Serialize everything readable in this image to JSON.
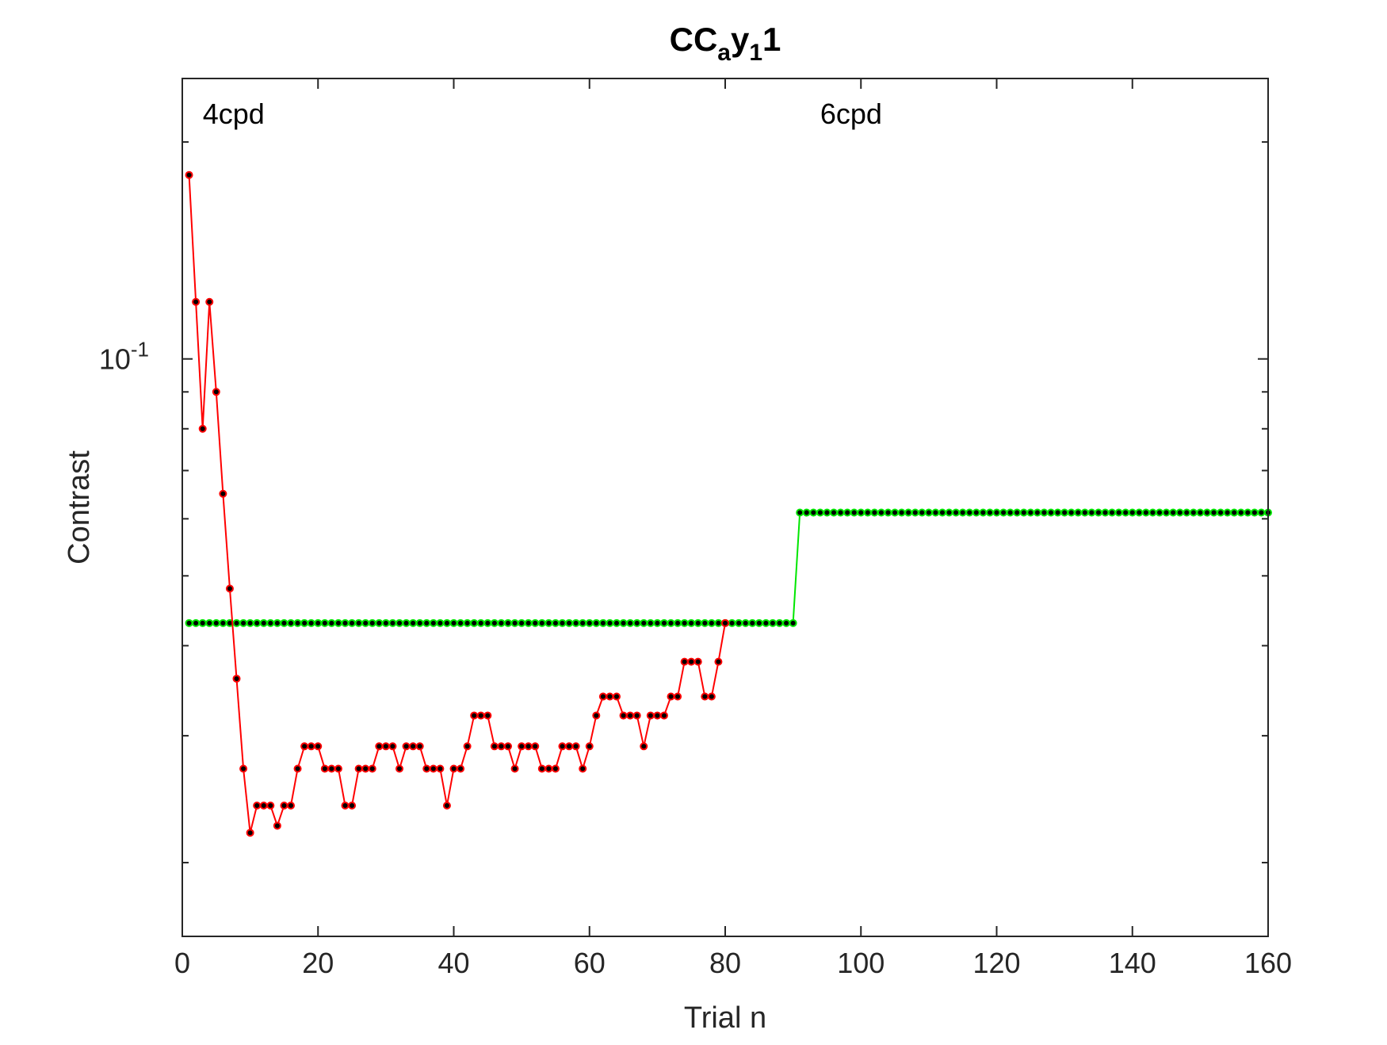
{
  "chart_data": {
    "type": "line",
    "title": {
      "base1": "CC",
      "sub1": "a",
      "base2": "y",
      "sub2": "1",
      "base3": "1"
    },
    "xlabel": "Trial n",
    "ylabel": "Contrast",
    "xlim": [
      0,
      160
    ],
    "ylim": [
      0.0158,
      0.245
    ],
    "yscale": "log",
    "grid": false,
    "x_ticks": [
      0,
      20,
      40,
      60,
      80,
      100,
      120,
      140,
      160
    ],
    "y_tick_label": {
      "base": "10",
      "exp": "-1",
      "value": 0.1
    },
    "y_minor_ticks": [
      0.02,
      0.03,
      0.04,
      0.05,
      0.06,
      0.07,
      0.08,
      0.09,
      0.2
    ],
    "annotations": [
      {
        "text": "4cpd",
        "x": 3,
        "y": 0.212
      },
      {
        "text": "6cpd",
        "x": 94,
        "y": 0.212
      }
    ],
    "series": [
      {
        "color": "#ff0000",
        "marker_color": "#000000",
        "x": [
          1,
          2,
          3,
          4,
          5,
          6,
          7,
          8,
          9,
          10,
          11,
          12,
          13,
          14,
          15,
          16,
          17,
          18,
          19,
          20,
          21,
          22,
          23,
          24,
          25,
          26,
          27,
          28,
          29,
          30,
          31,
          32,
          33,
          34,
          35,
          36,
          37,
          38,
          39,
          40,
          41,
          42,
          43,
          44,
          45,
          46,
          47,
          48,
          49,
          50,
          51,
          52,
          53,
          54,
          55,
          56,
          57,
          58,
          59,
          60,
          61,
          62,
          63,
          64,
          65,
          66,
          67,
          68,
          69,
          70,
          71,
          72,
          73,
          74,
          75,
          76,
          77,
          78,
          79,
          80
        ],
        "values": [
          0.18,
          0.12,
          0.08,
          0.12,
          0.09,
          0.065,
          0.048,
          0.036,
          0.027,
          0.022,
          0.024,
          0.024,
          0.024,
          0.0225,
          0.024,
          0.024,
          0.027,
          0.029,
          0.029,
          0.029,
          0.027,
          0.027,
          0.027,
          0.024,
          0.024,
          0.027,
          0.027,
          0.027,
          0.029,
          0.029,
          0.029,
          0.027,
          0.029,
          0.029,
          0.029,
          0.027,
          0.027,
          0.027,
          0.024,
          0.027,
          0.027,
          0.029,
          0.032,
          0.032,
          0.032,
          0.029,
          0.029,
          0.029,
          0.027,
          0.029,
          0.029,
          0.029,
          0.027,
          0.027,
          0.027,
          0.029,
          0.029,
          0.029,
          0.027,
          0.029,
          0.032,
          0.034,
          0.034,
          0.034,
          0.032,
          0.032,
          0.032,
          0.029,
          0.032,
          0.032,
          0.032,
          0.034,
          0.034,
          0.038,
          0.038,
          0.038,
          0.034,
          0.034,
          0.038,
          0.043
        ]
      },
      {
        "color": "#00e600",
        "marker_color": "#000000",
        "segments": [
          {
            "x_start": 1,
            "x_end": 90,
            "value": 0.043
          },
          {
            "x_start": 91,
            "x_end": 160,
            "value": 0.0612
          }
        ]
      }
    ]
  }
}
